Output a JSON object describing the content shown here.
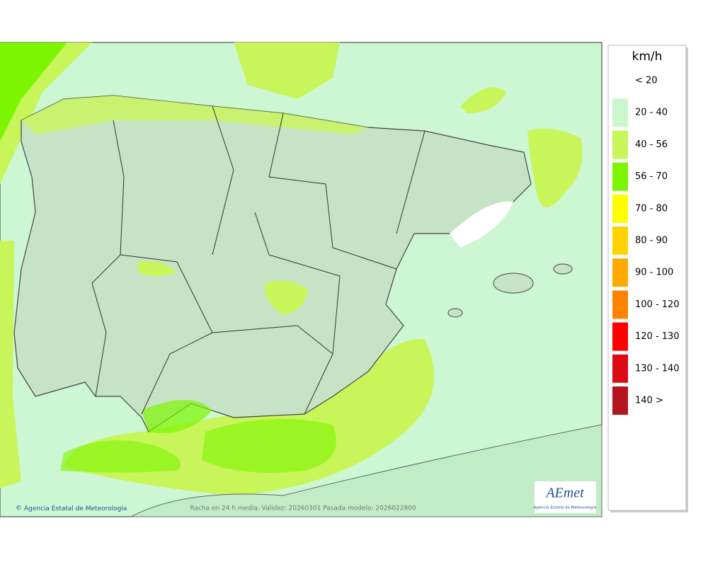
{
  "legend": {
    "title": "km/h",
    "items": [
      {
        "label": "< 20",
        "color": "#ffffff"
      },
      {
        "label": "20 - 40",
        "color": "#ccf7cc"
      },
      {
        "label": "40 - 56",
        "color": "#c8f55a"
      },
      {
        "label": "56 - 70",
        "color": "#7df500"
      },
      {
        "label": "70 - 80",
        "color": "#ffff00"
      },
      {
        "label": "80 - 90",
        "color": "#ffd200"
      },
      {
        "label": "90 - 100",
        "color": "#ffaa00"
      },
      {
        "label": "100 - 120",
        "color": "#ff8200"
      },
      {
        "label": "120 - 130",
        "color": "#ff0000"
      },
      {
        "label": "130 - 140",
        "color": "#dc0a14"
      },
      {
        "label": "140 >",
        "color": "#b4141e"
      }
    ]
  },
  "footer": {
    "credit": "Agencia Estatal de Meteorología",
    "caption": "Racha en 24 h media. Validez: 20260301 Pasada modelo: 2026022800"
  },
  "logo": {
    "name": "AEmet",
    "subtitle": "Agencia Estatal de Meteorología"
  }
}
